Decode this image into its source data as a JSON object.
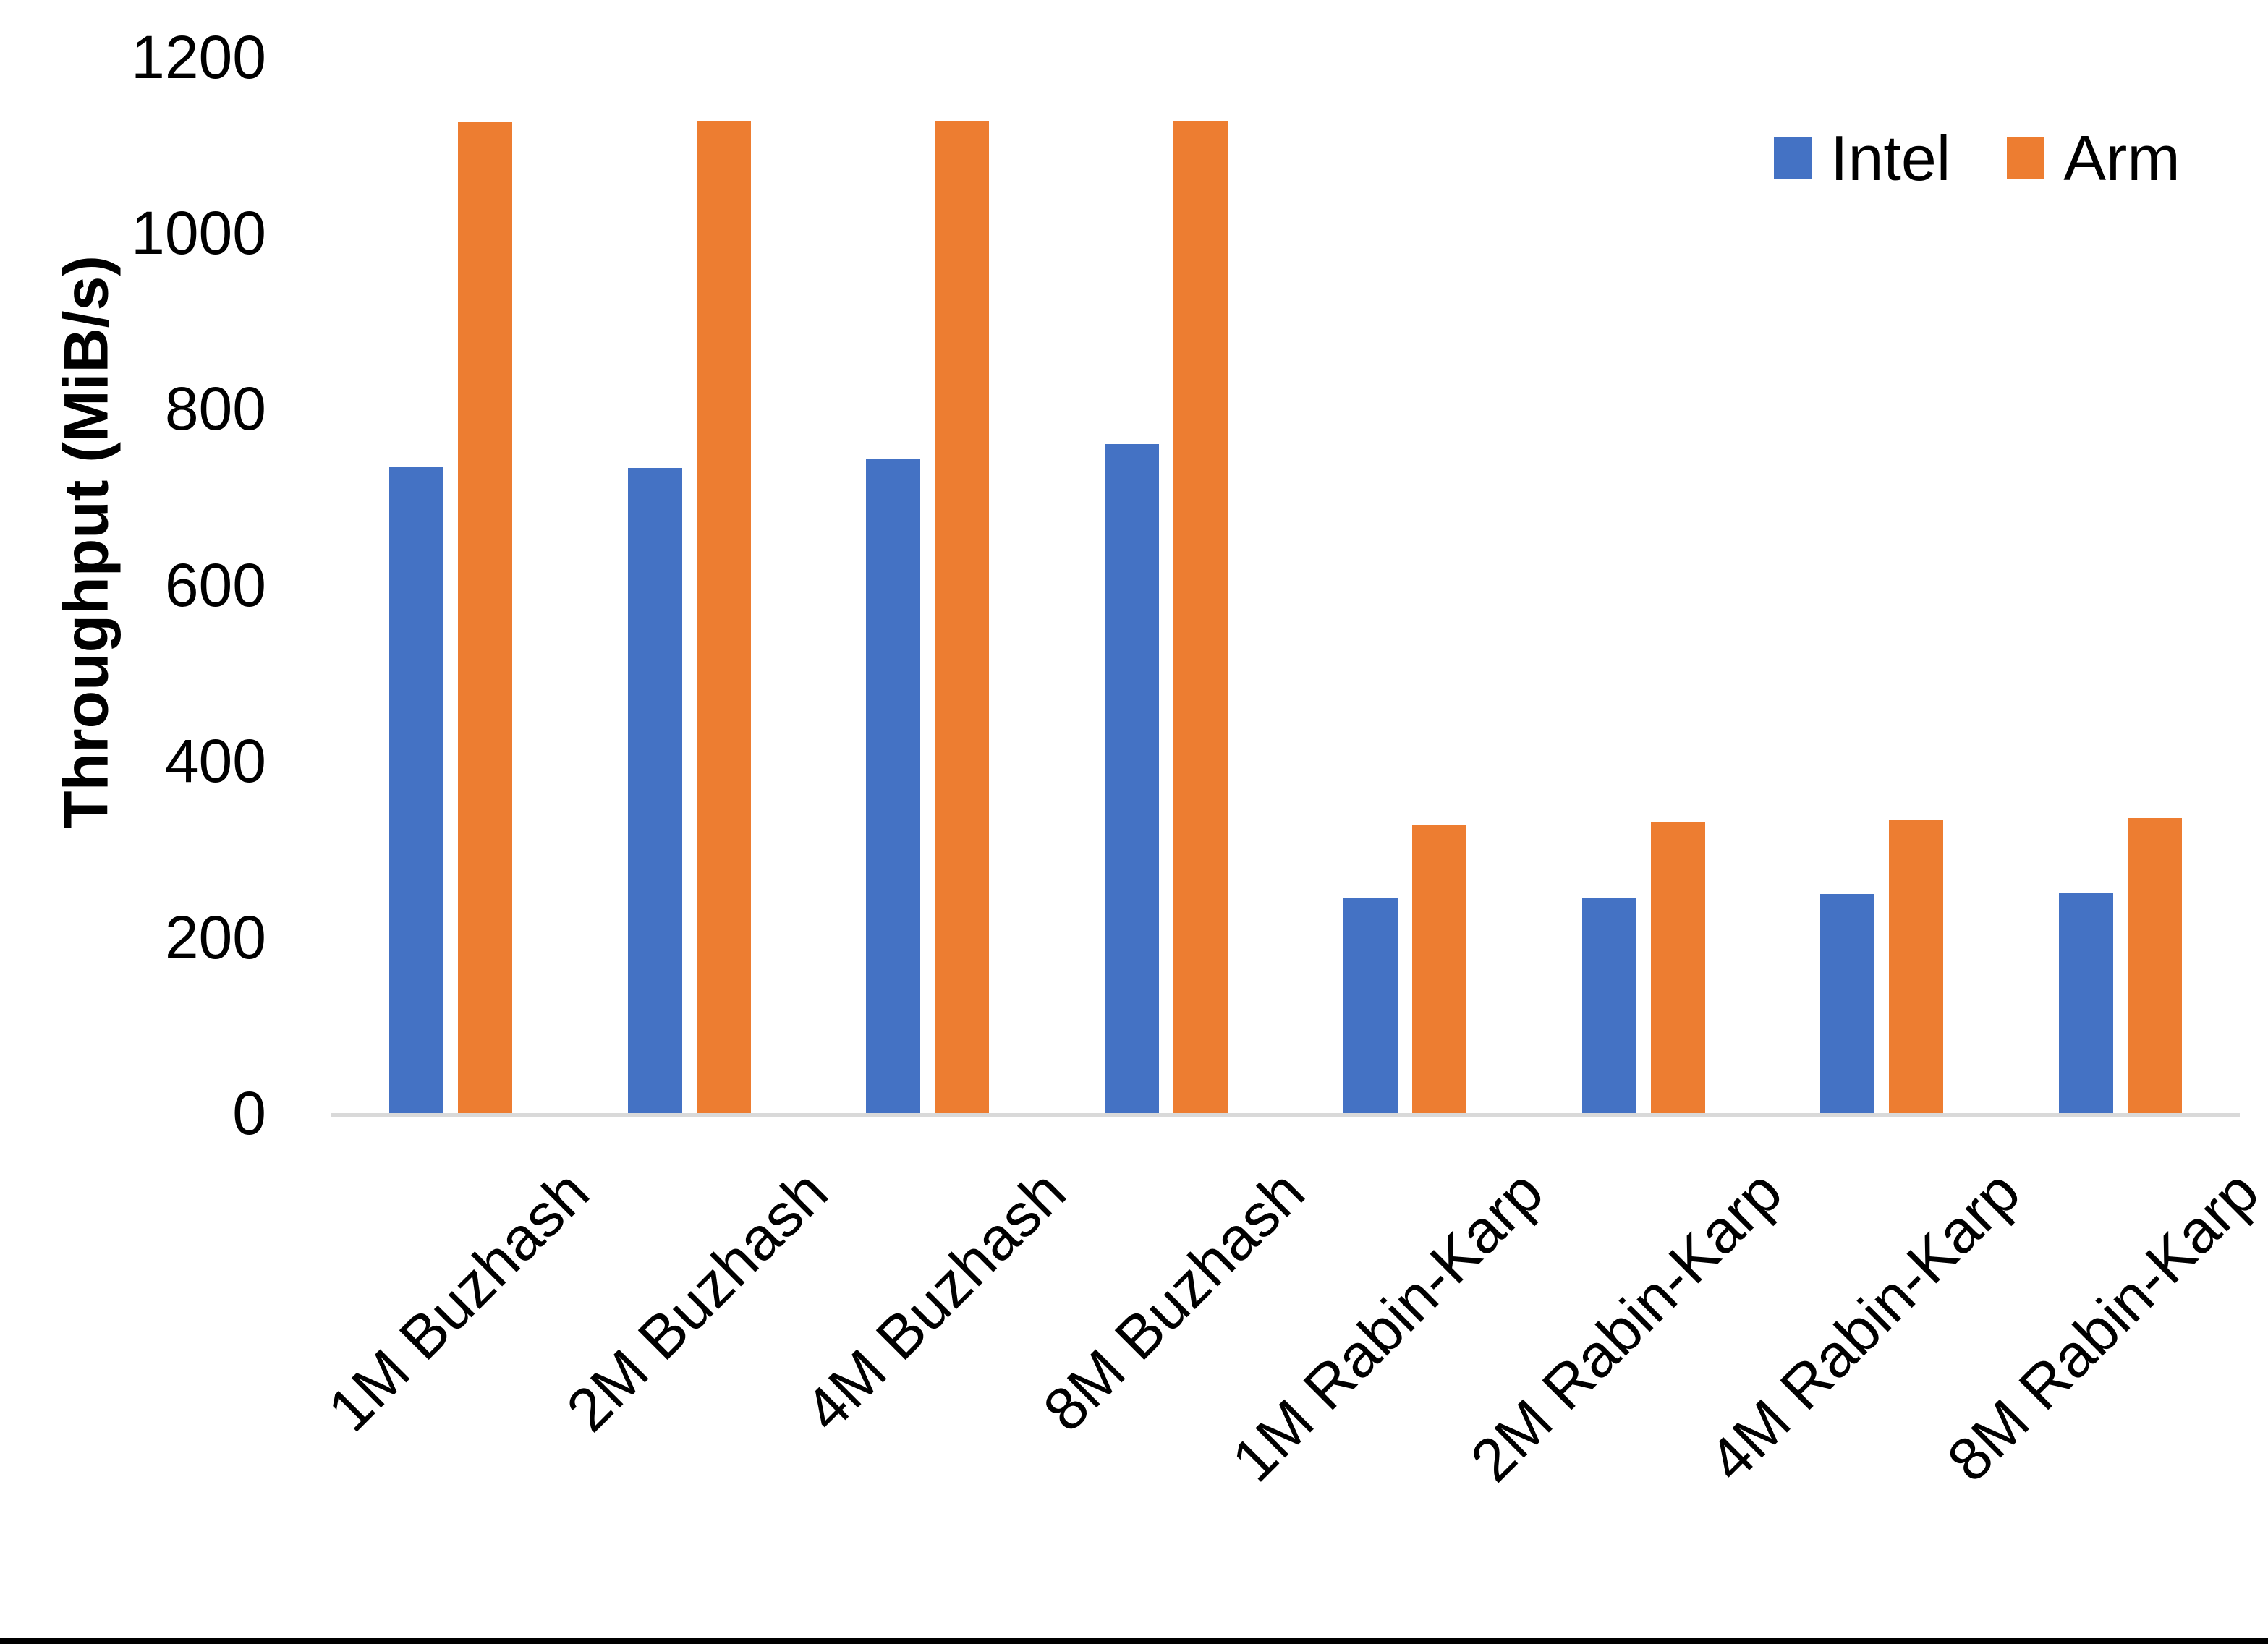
{
  "chart_data": {
    "type": "bar",
    "title": "",
    "xlabel": "",
    "ylabel": "Throughput (MiB/s)",
    "ylim": [
      0,
      1200
    ],
    "yticks": [
      0,
      200,
      400,
      600,
      800,
      1000,
      1200
    ],
    "grid": false,
    "legend_position": "top-right",
    "bar_orientation": "vertical",
    "x_label_rotation_deg": 45,
    "categories": [
      "1M Buzhash",
      "2M Buzhash",
      "4M Buzhash",
      "8M Buzhash",
      "1M Rabin-Karp",
      "2M Rabin-Karp",
      "4M Rabin-Karp",
      "8M Rabin-Karp"
    ],
    "series": [
      {
        "name": "Intel",
        "color": "#4472C4",
        "values": [
          735,
          733,
          743,
          760,
          245,
          245,
          249,
          250
        ]
      },
      {
        "name": "Arm",
        "color": "#ED7D31",
        "values": [
          1126,
          1127,
          1127,
          1127,
          327,
          330,
          333,
          335
        ]
      }
    ]
  },
  "axis": {
    "line_color": "#D9D9D9",
    "text_color": "#000000",
    "bottom_border_color": "#000000"
  }
}
